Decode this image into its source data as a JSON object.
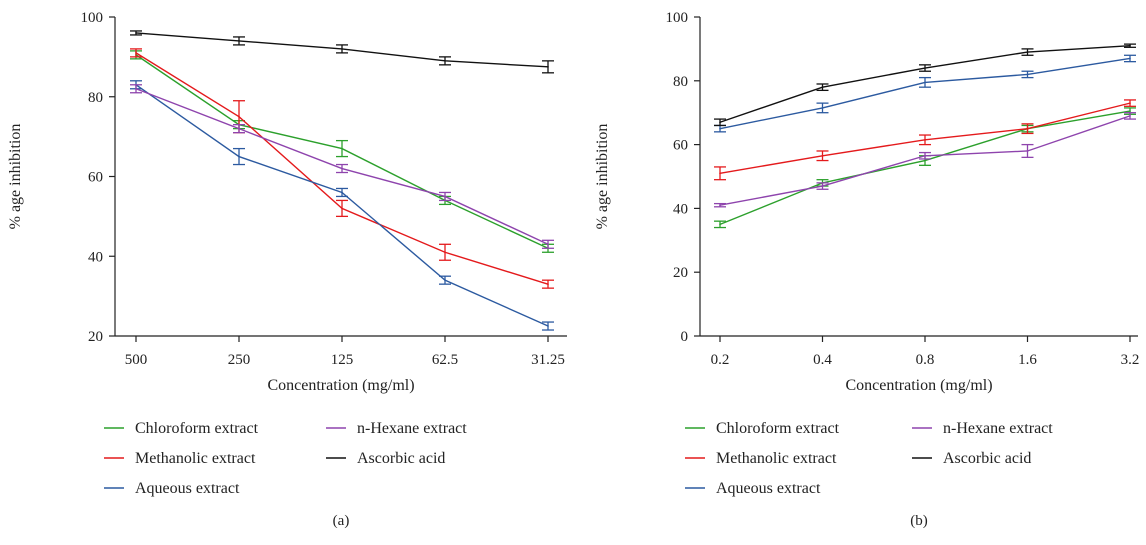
{
  "chart_data": [
    {
      "type": "line",
      "panel_label": "(a)",
      "xlabel": "Concentration (mg/ml)",
      "ylabel": "% age inhibition",
      "categories": [
        "500",
        "250",
        "125",
        "62.5",
        "31.25"
      ],
      "yticks": [
        "20",
        "40",
        "60",
        "80",
        "100"
      ],
      "ylim": [
        20,
        100
      ],
      "legend_position": "bottom",
      "series": [
        {
          "name": "Chloroform extract",
          "color": "#2ca02c",
          "values": [
            90.5,
            73,
            67,
            54,
            42
          ],
          "errors": [
            1,
            1,
            2,
            1,
            1
          ]
        },
        {
          "name": "Methanolic extract",
          "color": "#e41a1c",
          "values": [
            91,
            75,
            52,
            41,
            33
          ],
          "errors": [
            1,
            4,
            2,
            2,
            1
          ]
        },
        {
          "name": "Aqueous extract",
          "color": "#2c5aa0",
          "values": [
            83,
            65,
            56,
            34,
            22.5
          ],
          "errors": [
            1,
            2,
            1,
            1,
            1
          ]
        },
        {
          "name": "n-Hexane extract",
          "color": "#8e44ad",
          "values": [
            82,
            72,
            62,
            55,
            43
          ],
          "errors": [
            1,
            1,
            1,
            1,
            1
          ]
        },
        {
          "name": "Ascorbic acid",
          "color": "#111111",
          "values": [
            96,
            94,
            92,
            89,
            87.5
          ],
          "errors": [
            0.5,
            1,
            1,
            1,
            1.5
          ]
        }
      ]
    },
    {
      "type": "line",
      "panel_label": "(b)",
      "xlabel": "Concentration (mg/ml)",
      "ylabel": "% age inhibition",
      "categories": [
        "0.2",
        "0.4",
        "0.8",
        "1.6",
        "3.2"
      ],
      "yticks": [
        "0",
        "20",
        "40",
        "60",
        "80",
        "100"
      ],
      "ylim": [
        0,
        100
      ],
      "legend_position": "bottom",
      "series": [
        {
          "name": "Chloroform extract",
          "color": "#2ca02c",
          "values": [
            35,
            48,
            55,
            65,
            70.5
          ],
          "errors": [
            1,
            1,
            1.5,
            1,
            1
          ]
        },
        {
          "name": "Methanolic extract",
          "color": "#e41a1c",
          "values": [
            51,
            56.5,
            61.5,
            65,
            73
          ],
          "errors": [
            2,
            1.5,
            1.5,
            1.5,
            1
          ]
        },
        {
          "name": "Aqueous extract",
          "color": "#2c5aa0",
          "values": [
            65,
            71.5,
            79.5,
            82,
            87
          ],
          "errors": [
            1,
            1.5,
            1.5,
            1,
            1
          ]
        },
        {
          "name": "n-Hexane extract",
          "color": "#8e44ad",
          "values": [
            41,
            47,
            56.5,
            58,
            69
          ],
          "errors": [
            0.5,
            1,
            1,
            2,
            1
          ]
        },
        {
          "name": "Ascorbic acid",
          "color": "#111111",
          "values": [
            67,
            78,
            84,
            89,
            91
          ],
          "errors": [
            1,
            1,
            1,
            1,
            0.5
          ]
        }
      ]
    }
  ]
}
